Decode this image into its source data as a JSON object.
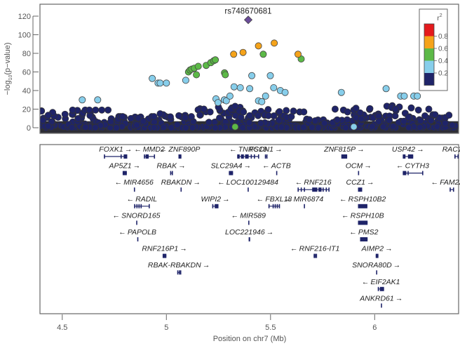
{
  "chart_data": {
    "type": "scatter",
    "title": "",
    "lead_snp": {
      "label": "rs748670681",
      "x": 5.393,
      "y": 116,
      "color": "#6b4c9a",
      "shape": "diamond"
    },
    "xlabel": "Position on chr7 (Mb)",
    "ylabel_parts": {
      "prefix": "−log",
      "sub": "10",
      "suffix": "(p−value)"
    },
    "xlim": [
      4.393,
      6.403
    ],
    "ylim": [
      -3,
      135
    ],
    "xticks": [
      4.5,
      5,
      5.5,
      6
    ],
    "xtick_labels": [
      "4.5",
      "5",
      "5.5",
      "6"
    ],
    "yticks": [
      0,
      20,
      40,
      60,
      80,
      100,
      120
    ],
    "ytick_labels": [
      "0",
      "20",
      "40",
      "60",
      "80",
      "100",
      "120"
    ],
    "grid": false,
    "legend": {
      "title": "r²",
      "placement": "top-right",
      "bins": [
        {
          "range": "0.8-1.0",
          "color": "#e41a1c"
        },
        {
          "range": "0.6-0.8",
          "color": "#f5a31a"
        },
        {
          "range": "0.4-0.6",
          "color": "#5cb947"
        },
        {
          "range": "0.2-0.4",
          "color": "#87ceeb"
        },
        {
          "range": "0.0-0.2",
          "color": "#1f2469"
        }
      ],
      "tick_labels": [
        "0.8",
        "0.6",
        "0.4",
        "0.2"
      ]
    },
    "series": [
      {
        "name": "r2 0.6-0.8",
        "color": "#f5a31a",
        "points": [
          [
            5.323,
            79
          ],
          [
            5.368,
            81
          ],
          [
            5.442,
            88
          ],
          [
            5.518,
            91
          ],
          [
            5.632,
            79
          ]
        ]
      },
      {
        "name": "r2 0.4-0.6",
        "color": "#5cb947",
        "points": [
          [
            5.106,
            60
          ],
          [
            5.114,
            62
          ],
          [
            5.122,
            63
          ],
          [
            5.134,
            64
          ],
          [
            5.153,
            66
          ],
          [
            5.144,
            57
          ],
          [
            5.191,
            67
          ],
          [
            5.213,
            70
          ],
          [
            5.227,
            72
          ],
          [
            5.235,
            73
          ],
          [
            5.279,
            59
          ],
          [
            5.283,
            57
          ],
          [
            5.465,
            79
          ],
          [
            5.647,
            74
          ],
          [
            5.33,
            1
          ]
        ]
      },
      {
        "name": "r2 0.2-0.4",
        "color": "#87ceeb",
        "points": [
          [
            4.596,
            30
          ],
          [
            4.67,
            30
          ],
          [
            4.932,
            53
          ],
          [
            4.96,
            48
          ],
          [
            4.97,
            48
          ],
          [
            5.0,
            48
          ],
          [
            5.093,
            51
          ],
          [
            5.238,
            31
          ],
          [
            5.248,
            27
          ],
          [
            5.278,
            30
          ],
          [
            5.288,
            29
          ],
          [
            5.305,
            34
          ],
          [
            5.325,
            44
          ],
          [
            5.355,
            43
          ],
          [
            5.4,
            42
          ],
          [
            5.41,
            56
          ],
          [
            5.442,
            29
          ],
          [
            5.458,
            28
          ],
          [
            5.476,
            34
          ],
          [
            5.499,
            56
          ],
          [
            5.515,
            43
          ],
          [
            5.547,
            40
          ],
          [
            5.57,
            38
          ],
          [
            5.84,
            38
          ],
          [
            5.9,
            1
          ],
          [
            6.055,
            42
          ],
          [
            6.125,
            34
          ],
          [
            6.142,
            34
          ],
          [
            6.188,
            34
          ],
          [
            6.205,
            34
          ]
        ]
      },
      {
        "name": "r2 0.0-0.2",
        "color": "#1f2469",
        "points": []
      }
    ],
    "annotations": [
      "rs748670681"
    ]
  },
  "genes": {
    "rows": [
      [
        {
          "name": "FOXK1",
          "dir": "right",
          "start": 4.7,
          "end": 4.812,
          "exons": [
            [
              4.7,
              4.703
            ],
            [
              4.78,
              4.785
            ],
            [
              4.795,
              4.812
            ]
          ]
        },
        {
          "name": "MMD2",
          "dir": "left",
          "start": 4.892,
          "end": 4.945,
          "exons": [
            [
              4.892,
              4.895
            ],
            [
              4.9,
              4.915
            ],
            [
              4.94,
              4.945
            ]
          ]
        },
        {
          "name": "ZNF890P",
          "dir": "left",
          "start": 5.058,
          "end": 5.072,
          "exons": [
            [
              5.058,
              5.072
            ]
          ]
        },
        {
          "name": "TNRC18",
          "dir": "left",
          "start": 5.34,
          "end": 5.445,
          "exons": [
            [
              5.34,
              5.352
            ],
            [
              5.358,
              5.372
            ],
            [
              5.378,
              5.395
            ],
            [
              5.405,
              5.41
            ],
            [
              5.42,
              5.425
            ],
            [
              5.44,
              5.445
            ]
          ]
        },
        {
          "name": "FSCN1",
          "dir": "right",
          "start": 5.473,
          "end": 5.482,
          "exons": [
            [
              5.473,
              5.475
            ],
            [
              5.48,
              5.482
            ]
          ]
        },
        {
          "name": "ZNF815P",
          "dir": "right",
          "start": 5.84,
          "end": 5.868,
          "exons": [
            [
              5.84,
              5.868
            ]
          ]
        },
        {
          "name": "USP42",
          "dir": "right",
          "start": 6.135,
          "end": 6.185,
          "exons": [
            [
              6.135,
              6.148
            ],
            [
              6.16,
              6.185
            ]
          ]
        },
        {
          "name": "RAC1",
          "dir": "right",
          "start": 6.383,
          "end": 6.403,
          "exons": [
            [
              6.383,
              6.388
            ],
            [
              6.398,
              6.403
            ]
          ]
        }
      ],
      [
        {
          "name": "AP5Z1",
          "dir": "right",
          "start": 4.79,
          "end": 4.81,
          "exons": [
            [
              4.79,
              4.81
            ]
          ]
        },
        {
          "name": "RBAK",
          "dir": "right",
          "start": 5.018,
          "end": 5.028,
          "exons": [
            [
              5.018,
              5.02
            ],
            [
              5.026,
              5.028
            ]
          ]
        },
        {
          "name": "SLC29A4",
          "dir": "right",
          "start": 5.3,
          "end": 5.32,
          "exons": [
            [
              5.3,
              5.32
            ]
          ]
        },
        {
          "name": "ACTB",
          "dir": "left",
          "start": 5.527,
          "end": 5.531,
          "exons": [
            [
              5.527,
              5.531
            ]
          ]
        },
        {
          "name": "OCM",
          "dir": "right",
          "start": 5.92,
          "end": 5.925,
          "exons": [
            [
              5.92,
              5.925
            ]
          ]
        },
        {
          "name": "CYTH3",
          "dir": "left",
          "start": 6.135,
          "end": 6.23,
          "exons": [
            [
              6.135,
              6.152
            ],
            [
              6.158,
              6.162
            ],
            [
              6.228,
              6.23
            ]
          ]
        }
      ],
      [
        {
          "name": "MIR4656",
          "dir": "left",
          "start": 4.844,
          "end": 4.846,
          "exons": [
            [
              4.844,
              4.846
            ]
          ]
        },
        {
          "name": "RBAKDN",
          "dir": "right",
          "start": 5.068,
          "end": 5.07,
          "exons": [
            [
              5.068,
              5.07
            ]
          ]
        },
        {
          "name": "LOC100129484",
          "dir": "left",
          "start": 5.39,
          "end": 5.393,
          "exons": [
            [
              5.39,
              5.393
            ]
          ]
        },
        {
          "name": "RNF216",
          "dir": "left",
          "start": 5.63,
          "end": 5.78,
          "exons": [
            [
              5.63,
              5.633
            ],
            [
              5.645,
              5.648
            ],
            [
              5.66,
              5.663
            ],
            [
              5.7,
              5.725
            ],
            [
              5.73,
              5.745
            ],
            [
              5.75,
              5.755
            ],
            [
              5.765,
              5.768
            ],
            [
              5.778,
              5.78
            ]
          ]
        },
        {
          "name": "CCZ1",
          "dir": "right",
          "start": 5.92,
          "end": 5.94,
          "exons": [
            [
              5.92,
              5.94
            ]
          ]
        },
        {
          "name": "FAM220A",
          "dir": "left",
          "start": 6.36,
          "end": 6.378,
          "exons": [
            [
              6.36,
              6.362
            ],
            [
              6.376,
              6.378
            ]
          ]
        }
      ],
      [
        {
          "name": "RADIL",
          "dir": "left",
          "start": 4.845,
          "end": 4.92,
          "exons": [
            [
              4.845,
              4.85
            ],
            [
              4.856,
              4.86
            ],
            [
              4.866,
              4.87
            ],
            [
              4.876,
              4.88
            ],
            [
              4.915,
              4.92
            ]
          ]
        },
        {
          "name": "WIPI2",
          "dir": "right",
          "start": 5.22,
          "end": 5.25,
          "exons": [
            [
              5.22,
              5.222
            ],
            [
              5.232,
              5.25
            ]
          ]
        },
        {
          "name": "FBXL18",
          "dir": "left",
          "start": 5.49,
          "end": 5.545,
          "exons": [
            [
              5.49,
              5.492
            ],
            [
              5.51,
              5.515
            ],
            [
              5.52,
              5.525
            ],
            [
              5.53,
              5.535
            ],
            [
              5.54,
              5.545
            ]
          ]
        },
        {
          "name": "MIR6874",
          "dir": "left",
          "start": 5.66,
          "end": 5.662,
          "exons": [
            [
              5.66,
              5.662
            ]
          ]
        },
        {
          "name": "RSPH10B2",
          "dir": "left",
          "start": 5.92,
          "end": 5.965,
          "exons": [
            [
              5.92,
              5.965
            ]
          ]
        }
      ],
      [
        {
          "name": "SNORD165",
          "dir": "left",
          "start": 4.855,
          "end": 4.857,
          "exons": [
            [
              4.855,
              4.857
            ]
          ]
        },
        {
          "name": "MIR589",
          "dir": "left",
          "start": 5.393,
          "end": 5.395,
          "exons": [
            [
              5.393,
              5.395
            ]
          ]
        },
        {
          "name": "RSPH10B",
          "dir": "left",
          "start": 5.92,
          "end": 5.966,
          "exons": [
            [
              5.92,
              5.966
            ]
          ]
        }
      ],
      [
        {
          "name": "PAPOLB",
          "dir": "left",
          "start": 4.86,
          "end": 4.863,
          "exons": [
            [
              4.86,
              4.863
            ]
          ]
        },
        {
          "name": "LOC221946",
          "dir": "right",
          "start": 5.395,
          "end": 5.402,
          "exons": [
            [
              5.395,
              5.402
            ]
          ]
        },
        {
          "name": "PMS2",
          "dir": "left",
          "start": 5.93,
          "end": 5.966,
          "exons": [
            [
              5.93,
              5.966
            ]
          ]
        }
      ],
      [
        {
          "name": "RNF216P1",
          "dir": "right",
          "start": 4.982,
          "end": 5.0,
          "exons": [
            [
              4.982,
              5.0
            ]
          ]
        },
        {
          "name": "RNF216-IT1",
          "dir": "left",
          "start": 5.707,
          "end": 5.72,
          "exons": [
            [
              5.707,
              5.709
            ],
            [
              5.712,
              5.716
            ],
            [
              5.718,
              5.72
            ]
          ]
        },
        {
          "name": "AIMP2",
          "dir": "right",
          "start": 6.005,
          "end": 6.018,
          "exons": [
            [
              6.005,
              6.018
            ]
          ]
        }
      ],
      [
        {
          "name": "RBAK-RBAKDN",
          "dir": "right",
          "start": 5.052,
          "end": 5.068,
          "exons": [
            [
              5.052,
              5.055
            ],
            [
              5.06,
              5.062
            ],
            [
              5.066,
              5.068
            ]
          ]
        },
        {
          "name": "SNORA80D",
          "dir": "right",
          "start": 6.007,
          "end": 6.009,
          "exons": [
            [
              6.007,
              6.009
            ]
          ]
        }
      ],
      [
        {
          "name": "EIF2AK1",
          "dir": "left",
          "start": 6.015,
          "end": 6.045,
          "exons": [
            [
              6.015,
              6.02
            ],
            [
              6.025,
              6.045
            ]
          ]
        }
      ],
      [
        {
          "name": "ANKRD61",
          "dir": "right",
          "start": 6.03,
          "end": 6.034,
          "exons": [
            [
              6.03,
              6.034
            ]
          ]
        }
      ]
    ],
    "color": "#1f2469",
    "label_color": "#222222"
  }
}
